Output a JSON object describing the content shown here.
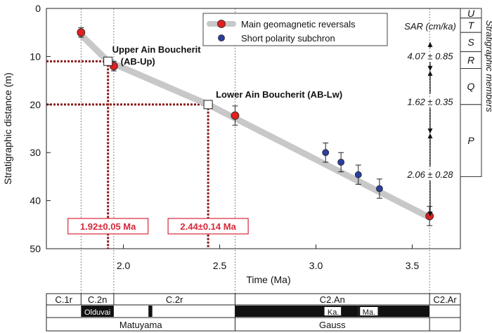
{
  "chart_data": {
    "type": "scatter",
    "xlabel": "Time (Ma)",
    "ylabel": "Stratigraphic distance (m)",
    "xlim": [
      1.6,
      3.75
    ],
    "ylim": [
      0,
      50
    ],
    "y_inverted": true,
    "xticks": [
      2.0,
      2.5,
      3.0,
      3.5
    ],
    "xtick_labels": [
      "2.0",
      "2.5",
      "3.0",
      "3.5"
    ],
    "yticks": [
      0,
      10,
      20,
      30,
      40,
      50
    ],
    "ytick_labels": [
      "0",
      "10",
      "20",
      "30",
      "40",
      "50"
    ],
    "legend": {
      "position": "top-right",
      "entries": [
        "Main geomagnetic reversals",
        "Short polarity subchron"
      ]
    },
    "trend_line": [
      {
        "x": 1.78,
        "y": 5.5
      },
      {
        "x": 1.92,
        "y": 11
      },
      {
        "x": 2.44,
        "y": 20
      },
      {
        "x": 3.59,
        "y": 43.5
      }
    ],
    "series": [
      {
        "name": "Main geomagnetic reversals",
        "color": "#e02020",
        "points": [
          {
            "x": 1.78,
            "y": 5,
            "err": 1
          },
          {
            "x": 1.95,
            "y": 12,
            "err": 1
          },
          {
            "x": 2.58,
            "y": 22.3,
            "err": 2
          },
          {
            "x": 3.59,
            "y": 43.2,
            "err": 2
          }
        ]
      },
      {
        "name": "Short polarity subchron",
        "color": "#2a3f9e",
        "points": [
          {
            "x": 3.05,
            "y": 30,
            "err": 2
          },
          {
            "x": 3.13,
            "y": 32,
            "err": 2
          },
          {
            "x": 3.22,
            "y": 34.6,
            "err": 2
          },
          {
            "x": 3.33,
            "y": 37.5,
            "err": 2
          }
        ]
      }
    ],
    "sites": [
      {
        "label": "Upper Ain Boucherit",
        "sublabel": "(AB-Up)",
        "x": 1.92,
        "y": 11,
        "age_label": "1.92±0.05 Ma"
      },
      {
        "label": "Lower Ain Boucherit (AB-Lw)",
        "x": 2.44,
        "y": 20,
        "age_label": "2.44±0.14 Ma"
      }
    ],
    "vertical_guides": [
      1.78,
      1.95,
      2.58,
      3.59
    ],
    "sar": {
      "title": "SAR (cm/ka)",
      "values": [
        {
          "label": "4.07 ± 0.85",
          "y_from": 7,
          "y_to": 13
        },
        {
          "label": "1.62 ± 0.35",
          "y_from": 13,
          "y_to": 26
        },
        {
          "label": "2.06 ± 0.28",
          "y_from": 26,
          "y_to": 43.3
        }
      ]
    },
    "members": {
      "title": "Stratigraphic members",
      "units": [
        {
          "label": "U",
          "y_from": 0,
          "y_to": 2
        },
        {
          "label": "T",
          "y_from": 2,
          "y_to": 5
        },
        {
          "label": "S",
          "y_from": 5,
          "y_to": 9
        },
        {
          "label": "R",
          "y_from": 9,
          "y_to": 12.5
        },
        {
          "label": "Q",
          "y_from": 12.5,
          "y_to": 20
        },
        {
          "label": "P",
          "y_from": 20,
          "y_to": 35
        }
      ]
    },
    "polarity": {
      "chrons": [
        {
          "label": "C.1r",
          "x_from": 1.6,
          "x_to": 1.78
        },
        {
          "label": "C.2n",
          "x_from": 1.78,
          "x_to": 1.95
        },
        {
          "label": "C.2r",
          "x_from": 1.95,
          "x_to": 2.58
        },
        {
          "label": "C2.An",
          "x_from": 2.58,
          "x_to": 3.59
        },
        {
          "label": "C2.Ar",
          "x_from": 3.59,
          "x_to": 3.75
        }
      ],
      "bars": [
        {
          "label": "Olduvai",
          "x_from": 1.78,
          "x_to": 1.95
        },
        {
          "label": "",
          "x_from": 2.13,
          "x_to": 2.15
        },
        {
          "label": "",
          "x_from": 2.58,
          "x_to": 3.05
        },
        {
          "label": "Ka.",
          "x_from": 3.05,
          "x_to": 3.13
        },
        {
          "label": "",
          "x_from": 3.13,
          "x_to": 3.22
        },
        {
          "label": "Ma.",
          "x_from": 3.22,
          "x_to": 3.33
        },
        {
          "label": "",
          "x_from": 3.33,
          "x_to": 3.59
        }
      ],
      "epochs": [
        {
          "label": "Matuyama",
          "x_from": 1.6,
          "x_to": 2.58
        },
        {
          "label": "Gauss",
          "x_from": 2.58,
          "x_to": 3.59
        }
      ]
    }
  }
}
